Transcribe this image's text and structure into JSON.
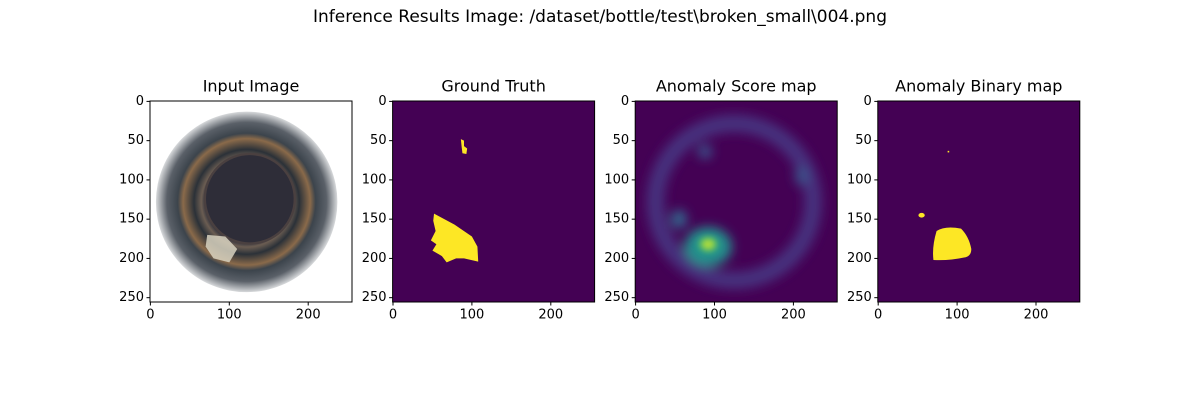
{
  "title": "Inference Results Image: /dataset/bottle/test\\broken_small\\004.png",
  "chart_data": [
    {
      "type": "image",
      "title": "Input Image",
      "xlim": [
        -0.5,
        255.5
      ],
      "ylim": [
        255.5,
        -0.5
      ],
      "xticks": [
        0,
        100,
        200
      ],
      "yticks": [
        0,
        50,
        100,
        150,
        200,
        250
      ]
    },
    {
      "type": "image",
      "title": "Ground Truth",
      "xlim": [
        -0.5,
        255.5
      ],
      "ylim": [
        255.5,
        -0.5
      ],
      "xticks": [
        0,
        100,
        200
      ],
      "yticks": [
        0,
        50,
        100,
        150,
        200,
        250
      ]
    },
    {
      "type": "image",
      "title": "Anomaly Score map",
      "xlim": [
        -0.5,
        255.5
      ],
      "ylim": [
        255.5,
        -0.5
      ],
      "xticks": [
        0,
        100,
        200
      ],
      "yticks": [
        0,
        50,
        100,
        150,
        200,
        250
      ]
    },
    {
      "type": "image",
      "title": "Anomaly Binary map",
      "xlim": [
        -0.5,
        255.5
      ],
      "ylim": [
        255.5,
        -0.5
      ],
      "xticks": [
        0,
        100,
        200
      ],
      "yticks": [
        0,
        50,
        100,
        150,
        200,
        250
      ]
    }
  ]
}
